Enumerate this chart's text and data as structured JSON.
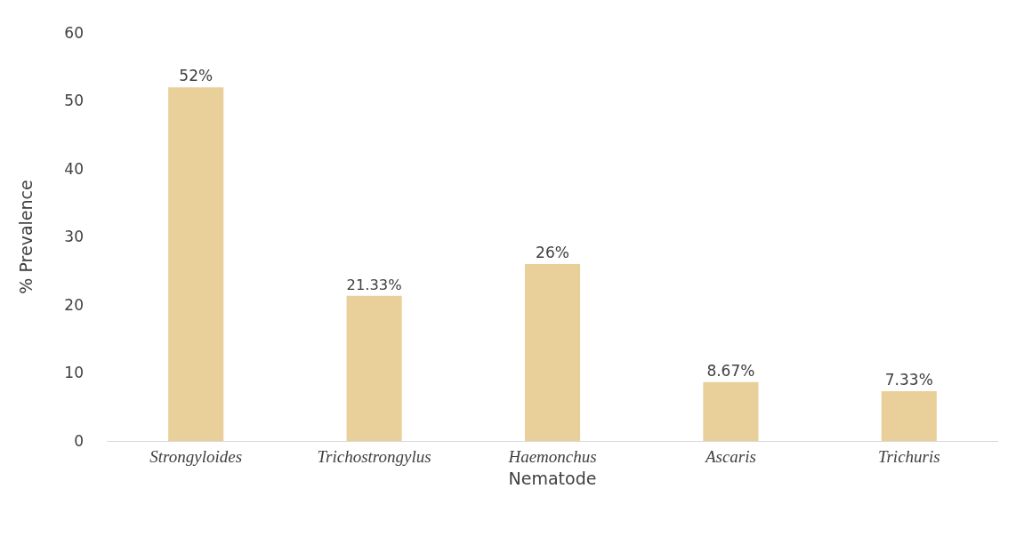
{
  "chart_data": {
    "type": "bar",
    "categories": [
      "Strongyloides",
      "Trichostrongylus",
      "Haemonchus",
      "Ascaris",
      "Trichuris"
    ],
    "values": [
      52,
      21.33,
      26,
      8.67,
      7.33
    ],
    "value_labels": [
      "52%",
      "21.33%",
      "26%",
      "8.67%",
      "7.33%"
    ],
    "color": "#e9d09a",
    "xlabel": "Nematode",
    "ylabel": "% Prevalence",
    "ylim": [
      0,
      60
    ],
    "yticks": [
      0,
      10,
      20,
      30,
      40,
      50,
      60
    ],
    "grid": false,
    "legend": false
  }
}
